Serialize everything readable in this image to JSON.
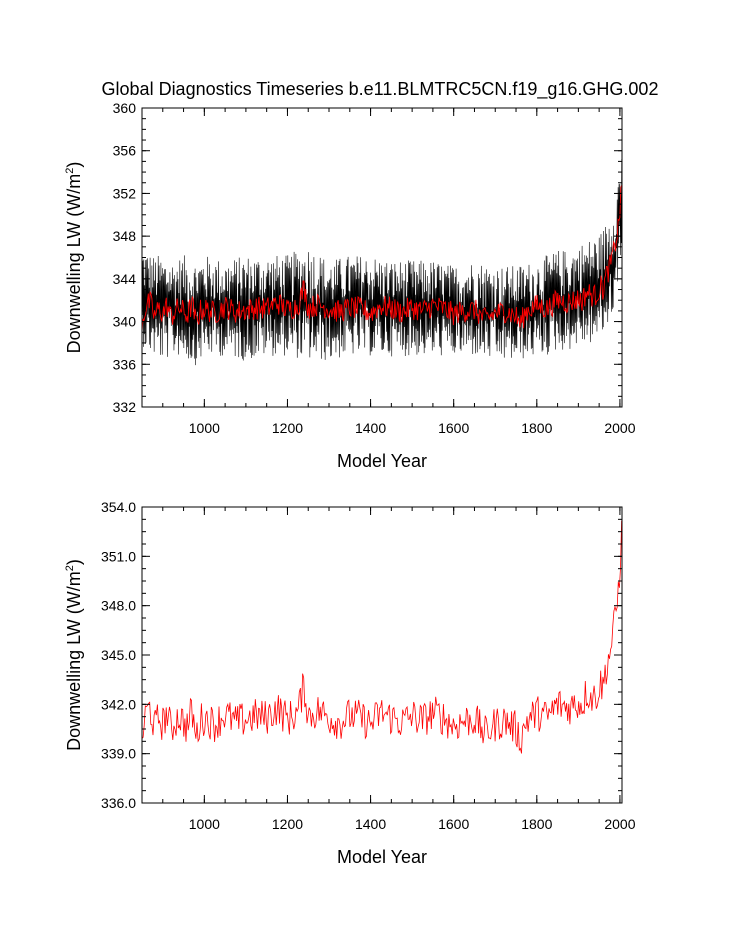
{
  "title": "Global Diagnostics Timeseries b.e11.BLMTRC5CN.f19_g16.GHG.002",
  "colors": {
    "monthly": "#000000",
    "annual": "#ff0000",
    "axis": "#000000",
    "background": "#ffffff"
  },
  "chart_data": [
    {
      "type": "line",
      "title": "Global Diagnostics Timeseries b.e11.BLMTRC5CN.f19_g16.GHG.002",
      "xlabel": "Model Year",
      "ylabel_main": "Downwelling LW (W/m",
      "ylabel_sup": "2",
      "ylabel_close": ")",
      "xlim": [
        850,
        2005
      ],
      "ylim": [
        332,
        360
      ],
      "xticks": [
        1000,
        1200,
        1400,
        1600,
        1800,
        2000
      ],
      "xtick_labels": [
        "1000",
        "1200",
        "1400",
        "1600",
        "1800",
        "2000"
      ],
      "yticks": [
        332,
        336,
        340,
        344,
        348,
        352,
        356,
        360
      ],
      "ytick_labels": [
        "332",
        "336",
        "340",
        "344",
        "348",
        "352",
        "356",
        "360"
      ],
      "series": [
        {
          "name": "monthly",
          "color": "#000000",
          "style": "band",
          "x": [
            850,
            875,
            900,
            925,
            950,
            975,
            1000,
            1050,
            1100,
            1150,
            1200,
            1250,
            1300,
            1350,
            1400,
            1450,
            1500,
            1550,
            1600,
            1650,
            1700,
            1750,
            1800,
            1825,
            1850,
            1875,
            1900,
            1925,
            1950,
            1960,
            1970,
            1980,
            1990,
            2000,
            2005
          ],
          "upper": [
            347.5,
            346.5,
            346.5,
            346.0,
            346.5,
            346.0,
            346.5,
            346.0,
            346.5,
            346.5,
            346.5,
            347.5,
            346.0,
            346.5,
            346.5,
            346.0,
            346.0,
            346.0,
            345.5,
            346.0,
            345.5,
            345.5,
            346.0,
            346.5,
            347.0,
            347.0,
            347.5,
            348.0,
            348.5,
            349.0,
            350.0,
            351.0,
            352.5,
            355.0,
            357.0
          ],
          "lower": [
            337.5,
            336.5,
            336.0,
            336.5,
            336.5,
            335.5,
            336.5,
            336.5,
            336.0,
            336.5,
            336.5,
            336.0,
            336.0,
            336.5,
            336.5,
            336.5,
            336.5,
            336.5,
            336.5,
            336.5,
            336.0,
            336.0,
            336.5,
            336.5,
            337.0,
            337.0,
            337.5,
            337.5,
            338.0,
            338.5,
            339.0,
            340.0,
            342.0,
            345.0,
            347.0
          ]
        },
        {
          "name": "annual",
          "color": "#ff0000",
          "style": "line",
          "x": [
            850,
            860,
            870,
            880,
            890,
            900,
            910,
            920,
            930,
            940,
            950,
            960,
            970,
            980,
            990,
            1000,
            1025,
            1050,
            1075,
            1100,
            1125,
            1150,
            1175,
            1200,
            1225,
            1240,
            1250,
            1275,
            1300,
            1325,
            1350,
            1375,
            1400,
            1425,
            1450,
            1475,
            1500,
            1525,
            1550,
            1575,
            1600,
            1625,
            1650,
            1675,
            1700,
            1725,
            1750,
            1760,
            1775,
            1800,
            1825,
            1850,
            1875,
            1900,
            1910,
            1920,
            1930,
            1940,
            1950,
            1955,
            1960,
            1965,
            1970,
            1975,
            1980,
            1985,
            1990,
            1995,
            2000,
            2005
          ],
          "y": [
            340.0,
            341.5,
            341.8,
            340.5,
            341.2,
            340.8,
            341.5,
            340.4,
            341.0,
            341.3,
            340.9,
            340.6,
            341.7,
            339.9,
            341.0,
            341.2,
            340.8,
            341.4,
            340.9,
            341.1,
            341.3,
            341.2,
            341.8,
            341.1,
            341.5,
            343.2,
            341.3,
            341.6,
            341.2,
            340.9,
            341.3,
            341.2,
            340.8,
            341.5,
            341.2,
            340.9,
            341.3,
            341.0,
            341.5,
            341.2,
            340.7,
            341.0,
            341.1,
            340.2,
            340.8,
            341.0,
            340.5,
            339.8,
            341.0,
            341.5,
            341.2,
            342.0,
            341.8,
            342.1,
            342.0,
            342.8,
            342.5,
            342.4,
            343.0,
            343.3,
            343.0,
            344.0,
            344.6,
            345.0,
            345.8,
            346.5,
            347.6,
            348.5,
            350.5,
            352.8
          ]
        }
      ]
    },
    {
      "type": "line",
      "title": "",
      "xlabel": "Model Year",
      "ylabel_main": "Downwelling LW (W/m",
      "ylabel_sup": "2",
      "ylabel_close": ")",
      "xlim": [
        850,
        2005
      ],
      "ylim": [
        336,
        354
      ],
      "xticks": [
        1000,
        1200,
        1400,
        1600,
        1800,
        2000
      ],
      "xtick_labels": [
        "1000",
        "1200",
        "1400",
        "1600",
        "1800",
        "2000"
      ],
      "yticks": [
        336,
        339,
        342,
        345,
        348,
        351,
        354
      ],
      "ytick_labels": [
        "336.0",
        "339.0",
        "342.0",
        "345.0",
        "348.0",
        "351.0",
        "354.0"
      ],
      "series": [
        {
          "name": "annual",
          "color": "#ff0000",
          "style": "line",
          "x": [
            850,
            860,
            870,
            880,
            890,
            900,
            910,
            920,
            930,
            940,
            950,
            960,
            970,
            980,
            990,
            1000,
            1025,
            1050,
            1075,
            1100,
            1125,
            1150,
            1175,
            1200,
            1225,
            1240,
            1250,
            1275,
            1300,
            1325,
            1350,
            1375,
            1400,
            1425,
            1450,
            1475,
            1500,
            1525,
            1550,
            1575,
            1600,
            1625,
            1650,
            1675,
            1700,
            1725,
            1750,
            1760,
            1775,
            1800,
            1825,
            1850,
            1875,
            1900,
            1910,
            1920,
            1930,
            1940,
            1950,
            1955,
            1960,
            1965,
            1970,
            1975,
            1980,
            1985,
            1990,
            1995,
            2000,
            2005
          ],
          "y": [
            340.0,
            341.5,
            341.8,
            340.5,
            341.2,
            340.8,
            341.5,
            340.4,
            341.0,
            341.3,
            340.9,
            340.6,
            341.7,
            339.9,
            341.0,
            341.2,
            340.8,
            341.4,
            340.9,
            341.1,
            341.3,
            341.2,
            341.8,
            341.1,
            341.5,
            343.2,
            341.3,
            341.6,
            341.2,
            340.9,
            341.3,
            341.2,
            340.8,
            341.5,
            341.2,
            340.9,
            341.3,
            341.0,
            341.5,
            341.2,
            340.7,
            341.0,
            341.1,
            340.2,
            340.8,
            341.0,
            340.5,
            339.8,
            341.0,
            341.5,
            341.2,
            342.0,
            341.8,
            342.1,
            342.0,
            342.8,
            342.5,
            342.4,
            343.0,
            343.3,
            343.0,
            344.0,
            344.6,
            345.0,
            345.8,
            346.5,
            347.6,
            348.5,
            350.5,
            352.8
          ]
        }
      ]
    }
  ]
}
